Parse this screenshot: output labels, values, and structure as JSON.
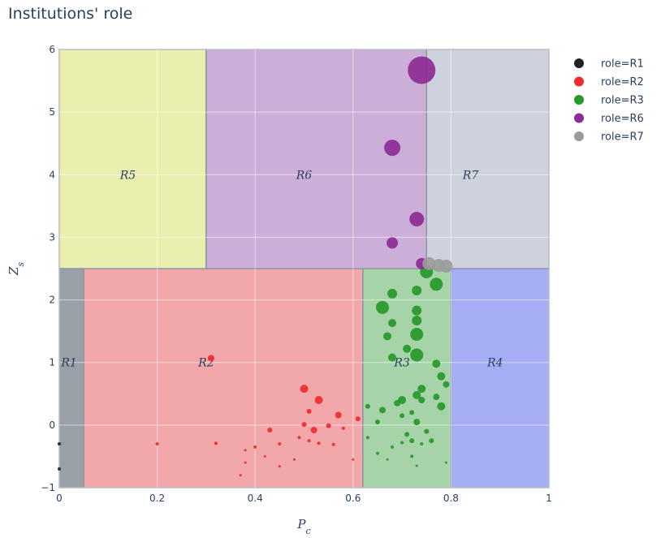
{
  "title": "Institutions' role",
  "chart_data": {
    "type": "scatter",
    "title": "Institutions' role",
    "xlabel": "P_c",
    "ylabel": "Z_s",
    "xlim": [
      0,
      1
    ],
    "ylim": [
      -1,
      6
    ],
    "x_ticks": [
      0,
      0.2,
      0.4,
      0.6,
      0.8,
      1
    ],
    "y_ticks": [
      -1,
      0,
      1,
      2,
      3,
      4,
      5,
      6
    ],
    "x_tick_labels": [
      "0",
      "0.2",
      "0.4",
      "0.6",
      "0.8",
      "1"
    ],
    "y_tick_labels": [
      "−1",
      "0",
      "1",
      "2",
      "3",
      "4",
      "5",
      "6"
    ],
    "grid": true,
    "legend_position": "right",
    "regions": [
      {
        "label": "R1",
        "x0": 0.0,
        "x1": 0.05,
        "y0": -1,
        "y1": 2.5,
        "color": "#9aa0a8"
      },
      {
        "label": "R2",
        "x0": 0.05,
        "x1": 0.62,
        "y0": -1,
        "y1": 2.5,
        "color": "#f2a7ab"
      },
      {
        "label": "R3",
        "x0": 0.62,
        "x1": 0.8,
        "y0": -1,
        "y1": 2.5,
        "color": "#a6d4a8"
      },
      {
        "label": "R4",
        "x0": 0.8,
        "x1": 1.0,
        "y0": -1,
        "y1": 2.5,
        "color": "#a5aef5"
      },
      {
        "label": "R5",
        "x0": 0.0,
        "x1": 0.3,
        "y0": 2.5,
        "y1": 6,
        "color": "#eaefb0"
      },
      {
        "label": "R6",
        "x0": 0.3,
        "x1": 0.75,
        "y0": 2.5,
        "y1": 6,
        "color": "#ccafd8"
      },
      {
        "label": "R7",
        "x0": 0.75,
        "x1": 1.0,
        "y0": 2.5,
        "y1": 6,
        "color": "#cdd2dc"
      }
    ],
    "region_label_positions": [
      {
        "label": "R1",
        "x": 0.02,
        "y": 1
      },
      {
        "label": "R2",
        "x": 0.3,
        "y": 1
      },
      {
        "label": "R3",
        "x": 0.7,
        "y": 1
      },
      {
        "label": "R4",
        "x": 0.89,
        "y": 1
      },
      {
        "label": "R5",
        "x": 0.14,
        "y": 4
      },
      {
        "label": "R6",
        "x": 0.5,
        "y": 4
      },
      {
        "label": "R7",
        "x": 0.84,
        "y": 4
      }
    ],
    "series": [
      {
        "name": "role=R1",
        "color": "#222222",
        "points": [
          {
            "x": 0.0,
            "y": -0.3,
            "s": 2
          },
          {
            "x": 0.0,
            "y": -0.7,
            "s": 2
          }
        ]
      },
      {
        "name": "role=R2",
        "color": "#ef2b2b",
        "points": [
          {
            "x": 0.31,
            "y": 1.07,
            "s": 4
          },
          {
            "x": 0.5,
            "y": 0.58,
            "s": 5
          },
          {
            "x": 0.53,
            "y": 0.4,
            "s": 5
          },
          {
            "x": 0.57,
            "y": 0.16,
            "s": 4
          },
          {
            "x": 0.51,
            "y": 0.22,
            "s": 3
          },
          {
            "x": 0.5,
            "y": 0.01,
            "s": 3
          },
          {
            "x": 0.52,
            "y": -0.08,
            "s": 4
          },
          {
            "x": 0.55,
            "y": -0.01,
            "s": 3
          },
          {
            "x": 0.43,
            "y": -0.08,
            "s": 3
          },
          {
            "x": 0.61,
            "y": 0.1,
            "s": 3
          },
          {
            "x": 0.2,
            "y": -0.3,
            "s": 2
          },
          {
            "x": 0.32,
            "y": -0.29,
            "s": 2
          },
          {
            "x": 0.4,
            "y": -0.35,
            "s": 2
          },
          {
            "x": 0.45,
            "y": -0.3,
            "s": 2
          },
          {
            "x": 0.49,
            "y": -0.2,
            "s": 2
          },
          {
            "x": 0.51,
            "y": -0.25,
            "s": 2
          },
          {
            "x": 0.53,
            "y": -0.29,
            "s": 2
          },
          {
            "x": 0.56,
            "y": -0.31,
            "s": 2
          },
          {
            "x": 0.58,
            "y": -0.05,
            "s": 2
          },
          {
            "x": 0.38,
            "y": -0.4,
            "s": 1.5
          },
          {
            "x": 0.38,
            "y": -0.6,
            "s": 1.5
          },
          {
            "x": 0.45,
            "y": -0.66,
            "s": 1.5
          },
          {
            "x": 0.48,
            "y": -0.55,
            "s": 1.5
          },
          {
            "x": 0.6,
            "y": -0.55,
            "s": 1.5
          },
          {
            "x": 0.42,
            "y": -0.5,
            "s": 1.5
          },
          {
            "x": 0.37,
            "y": -0.8,
            "s": 1.5
          }
        ]
      },
      {
        "name": "role=R3",
        "color": "#27992b",
        "points": [
          {
            "x": 0.75,
            "y": 2.45,
            "s": 8
          },
          {
            "x": 0.77,
            "y": 2.25,
            "s": 8
          },
          {
            "x": 0.73,
            "y": 2.15,
            "s": 6
          },
          {
            "x": 0.68,
            "y": 2.1,
            "s": 6
          },
          {
            "x": 0.66,
            "y": 1.88,
            "s": 8
          },
          {
            "x": 0.73,
            "y": 1.83,
            "s": 6
          },
          {
            "x": 0.73,
            "y": 1.67,
            "s": 6
          },
          {
            "x": 0.68,
            "y": 1.63,
            "s": 5
          },
          {
            "x": 0.73,
            "y": 1.45,
            "s": 8
          },
          {
            "x": 0.67,
            "y": 1.42,
            "s": 5
          },
          {
            "x": 0.71,
            "y": 1.22,
            "s": 5
          },
          {
            "x": 0.73,
            "y": 1.12,
            "s": 8
          },
          {
            "x": 0.68,
            "y": 1.08,
            "s": 5
          },
          {
            "x": 0.77,
            "y": 0.98,
            "s": 5
          },
          {
            "x": 0.78,
            "y": 0.78,
            "s": 5
          },
          {
            "x": 0.79,
            "y": 0.65,
            "s": 4
          },
          {
            "x": 0.74,
            "y": 0.58,
            "s": 5
          },
          {
            "x": 0.77,
            "y": 0.45,
            "s": 4
          },
          {
            "x": 0.73,
            "y": 0.48,
            "s": 5
          },
          {
            "x": 0.74,
            "y": 0.4,
            "s": 4
          },
          {
            "x": 0.7,
            "y": 0.4,
            "s": 5
          },
          {
            "x": 0.69,
            "y": 0.35,
            "s": 4
          },
          {
            "x": 0.78,
            "y": 0.3,
            "s": 5
          },
          {
            "x": 0.63,
            "y": 0.3,
            "s": 3
          },
          {
            "x": 0.66,
            "y": 0.24,
            "s": 4
          },
          {
            "x": 0.72,
            "y": 0.2,
            "s": 3
          },
          {
            "x": 0.7,
            "y": 0.15,
            "s": 3
          },
          {
            "x": 0.73,
            "y": 0.05,
            "s": 4
          },
          {
            "x": 0.65,
            "y": 0.05,
            "s": 3
          },
          {
            "x": 0.75,
            "y": -0.1,
            "s": 3
          },
          {
            "x": 0.71,
            "y": -0.15,
            "s": 3
          },
          {
            "x": 0.76,
            "y": -0.25,
            "s": 3
          },
          {
            "x": 0.72,
            "y": -0.25,
            "s": 3
          },
          {
            "x": 0.63,
            "y": -0.2,
            "s": 2
          },
          {
            "x": 0.68,
            "y": -0.35,
            "s": 2
          },
          {
            "x": 0.65,
            "y": -0.45,
            "s": 2
          },
          {
            "x": 0.72,
            "y": -0.5,
            "s": 2
          },
          {
            "x": 0.74,
            "y": -0.3,
            "s": 2
          },
          {
            "x": 0.67,
            "y": -0.55,
            "s": 1.5
          },
          {
            "x": 0.79,
            "y": -0.6,
            "s": 1.5
          },
          {
            "x": 0.73,
            "y": -0.65,
            "s": 1.5
          },
          {
            "x": 0.7,
            "y": -0.28,
            "s": 2
          }
        ]
      },
      {
        "name": "role=R6",
        "color": "#8e2b94",
        "points": [
          {
            "x": 0.74,
            "y": 5.67,
            "s": 17
          },
          {
            "x": 0.68,
            "y": 4.43,
            "s": 10
          },
          {
            "x": 0.73,
            "y": 3.29,
            "s": 9
          },
          {
            "x": 0.68,
            "y": 2.91,
            "s": 7
          },
          {
            "x": 0.74,
            "y": 2.58,
            "s": 7
          }
        ]
      },
      {
        "name": "role=R7",
        "color": "#9b9b9b",
        "points": [
          {
            "x": 0.755,
            "y": 2.58,
            "s": 8
          },
          {
            "x": 0.775,
            "y": 2.55,
            "s": 8
          },
          {
            "x": 0.79,
            "y": 2.54,
            "s": 8
          }
        ]
      }
    ]
  }
}
